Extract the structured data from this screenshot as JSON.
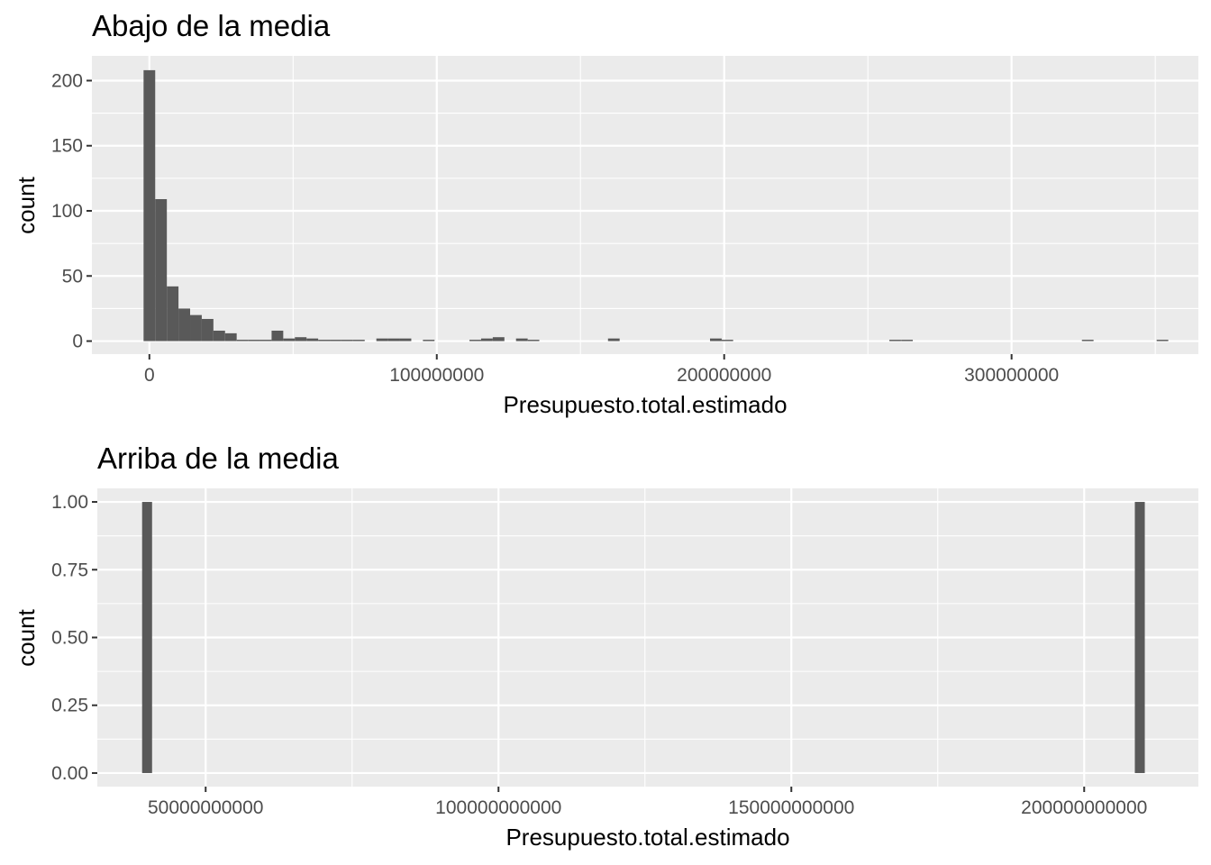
{
  "chart_data": [
    {
      "type": "bar",
      "title": "Abajo de la media",
      "xlabel": "Presupuesto.total.estimado",
      "ylabel": "count",
      "xlim": [
        -20000000,
        365000000
      ],
      "ylim": [
        -10,
        219
      ],
      "grid": true,
      "x_ticks": [
        0,
        100000000,
        200000000,
        300000000
      ],
      "x_tick_labels": [
        "0",
        "100000000",
        "200000000",
        "300000000"
      ],
      "y_ticks": [
        0,
        50,
        100,
        150,
        200
      ],
      "y_tick_labels": [
        "0",
        "50",
        "100",
        "150",
        "200"
      ],
      "bin_width": 4050000,
      "bins": [
        {
          "x": 0,
          "count": 208
        },
        {
          "x": 4050000,
          "count": 109
        },
        {
          "x": 8100000,
          "count": 42
        },
        {
          "x": 12150000,
          "count": 25
        },
        {
          "x": 16200000,
          "count": 20
        },
        {
          "x": 20250000,
          "count": 17
        },
        {
          "x": 24300000,
          "count": 8
        },
        {
          "x": 28350000,
          "count": 6
        },
        {
          "x": 32400000,
          "count": 1
        },
        {
          "x": 36450000,
          "count": 1
        },
        {
          "x": 40500000,
          "count": 1
        },
        {
          "x": 44550000,
          "count": 8
        },
        {
          "x": 48600000,
          "count": 2
        },
        {
          "x": 52650000,
          "count": 3
        },
        {
          "x": 56700000,
          "count": 2
        },
        {
          "x": 60750000,
          "count": 1
        },
        {
          "x": 64800000,
          "count": 1
        },
        {
          "x": 68850000,
          "count": 1
        },
        {
          "x": 72900000,
          "count": 1
        },
        {
          "x": 81000000,
          "count": 2
        },
        {
          "x": 85050000,
          "count": 2
        },
        {
          "x": 89100000,
          "count": 2
        },
        {
          "x": 97200000,
          "count": 1
        },
        {
          "x": 113400000,
          "count": 1
        },
        {
          "x": 117450000,
          "count": 2
        },
        {
          "x": 121500000,
          "count": 3
        },
        {
          "x": 129600000,
          "count": 2
        },
        {
          "x": 133650000,
          "count": 1
        },
        {
          "x": 161600000,
          "count": 2
        },
        {
          "x": 197100000,
          "count": 2
        },
        {
          "x": 201100000,
          "count": 1
        },
        {
          "x": 259500000,
          "count": 1
        },
        {
          "x": 263600000,
          "count": 1
        },
        {
          "x": 326500000,
          "count": 1
        },
        {
          "x": 352500000,
          "count": 1
        }
      ]
    },
    {
      "type": "bar",
      "title": "Arriba de la media",
      "xlabel": "Presupuesto.total.estimado",
      "ylabel": "count",
      "xlim": [
        31500000000,
        219500000000
      ],
      "ylim": [
        -0.05,
        1.05
      ],
      "grid": true,
      "x_ticks": [
        50000000000,
        100000000000,
        150000000000,
        200000000000
      ],
      "x_tick_labels": [
        "50000000000",
        "100000000000",
        "150000000000",
        "200000000000"
      ],
      "y_ticks": [
        0,
        0.25,
        0.5,
        0.75,
        1
      ],
      "y_tick_labels": [
        "0.00",
        "0.25",
        "0.50",
        "0.75",
        "1.00"
      ],
      "bin_width": 1700000000,
      "bins": [
        {
          "x": 40000000000,
          "count": 1
        },
        {
          "x": 209500000000,
          "count": 1
        }
      ]
    }
  ]
}
